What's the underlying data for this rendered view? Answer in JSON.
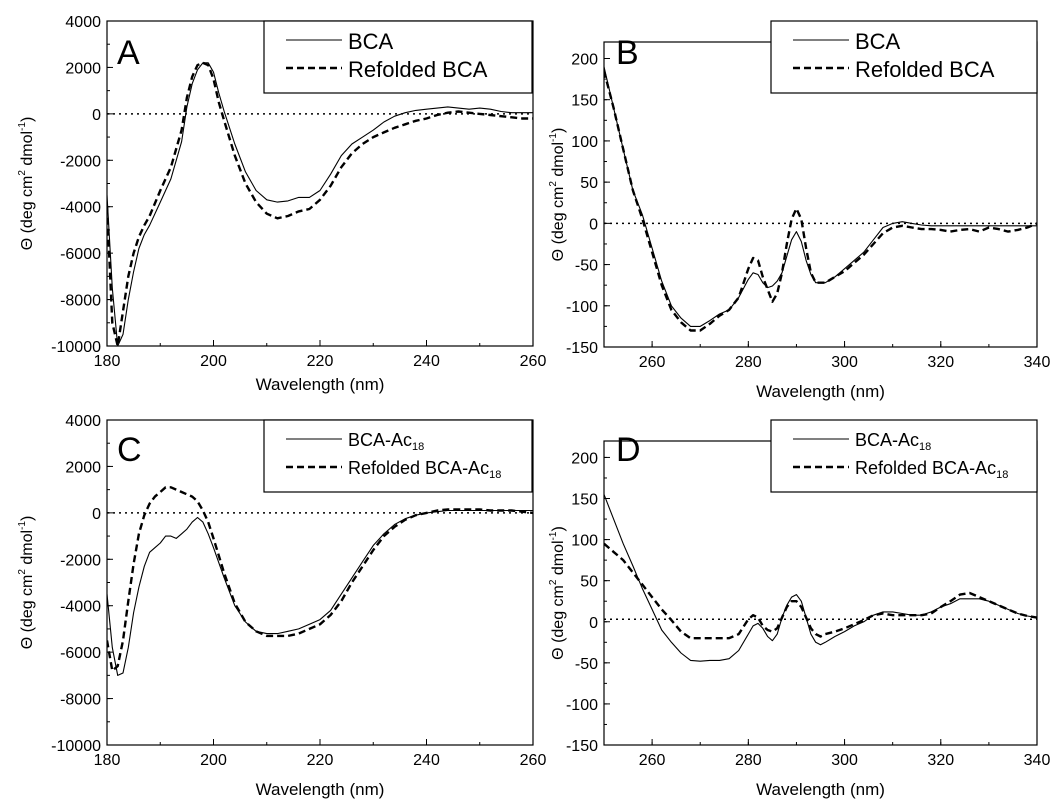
{
  "figure": {
    "panels": [
      {
        "letter": "A",
        "xlabel": "Wavelength (nm)",
        "ylabel_main": "Θ (deg cm",
        "ylabel_sup1": "2",
        "ylabel_mid": " dmol",
        "ylabel_sup2": "-1",
        "ylabel_end": ")",
        "legend": [
          {
            "text": "BCA",
            "sub": ""
          },
          {
            "text": "Refolded BCA",
            "sub": ""
          }
        ]
      },
      {
        "letter": "B",
        "xlabel": "Wavelength (nm)",
        "ylabel_main": "Θ (deg cm",
        "ylabel_sup1": "2",
        "ylabel_mid": " dmol",
        "ylabel_sup2": "-1",
        "ylabel_end": ")",
        "legend": [
          {
            "text": "BCA",
            "sub": ""
          },
          {
            "text": "Refolded BCA",
            "sub": ""
          }
        ]
      },
      {
        "letter": "C",
        "xlabel": "Wavelength (nm)",
        "ylabel_main": "Θ (deg cm",
        "ylabel_sup1": "2",
        "ylabel_mid": " dmol",
        "ylabel_sup2": "-1",
        "ylabel_end": ")",
        "legend": [
          {
            "text": "BCA-Ac",
            "sub": "18"
          },
          {
            "text": "Refolded BCA-Ac",
            "sub": "18"
          }
        ]
      },
      {
        "letter": "D",
        "xlabel": "Wavelength (nm)",
        "ylabel_main": "Θ (deg cm",
        "ylabel_sup1": "2",
        "ylabel_mid": " dmol",
        "ylabel_sup2": "-1",
        "ylabel_end": ")",
        "legend": [
          {
            "text": "BCA-Ac",
            "sub": "18"
          },
          {
            "text": "Refolded BCA-Ac",
            "sub": "18"
          }
        ]
      }
    ]
  },
  "chart_data": [
    {
      "type": "line",
      "panel": "A",
      "xlabel": "Wavelength (nm)",
      "ylabel": "Θ (deg cm2 dmol-1)",
      "xlim": [
        180,
        260
      ],
      "ylim": [
        -10000,
        4000
      ],
      "xticks": [
        180,
        200,
        220,
        240,
        260
      ],
      "yticks": [
        -10000,
        -8000,
        -6000,
        -4000,
        -2000,
        0,
        2000,
        4000
      ],
      "reference_line_y": 0,
      "series": [
        {
          "name": "BCA",
          "style": "solid",
          "x": [
            180,
            181,
            182,
            183,
            184,
            185,
            186,
            187,
            188,
            190,
            192,
            194,
            195,
            196,
            197,
            198,
            199,
            200,
            201,
            202,
            204,
            206,
            208,
            210,
            212,
            214,
            216,
            218,
            220,
            222,
            224,
            226,
            228,
            230,
            232,
            234,
            236,
            238,
            240,
            242,
            244,
            246,
            248,
            250,
            252,
            254,
            256,
            258,
            260
          ],
          "y": [
            -3500,
            -7500,
            -10000,
            -9500,
            -8000,
            -6800,
            -5800,
            -5200,
            -4800,
            -3800,
            -2800,
            -1200,
            300,
            1300,
            1900,
            2200,
            2200,
            1800,
            900,
            100,
            -1300,
            -2500,
            -3300,
            -3700,
            -3800,
            -3750,
            -3600,
            -3600,
            -3300,
            -2600,
            -1800,
            -1300,
            -1000,
            -700,
            -350,
            -100,
            50,
            150,
            200,
            250,
            300,
            250,
            200,
            250,
            200,
            100,
            50,
            50,
            50
          ]
        },
        {
          "name": "Refolded BCA",
          "style": "dashed",
          "x": [
            180,
            181,
            182,
            183,
            184,
            185,
            186,
            187,
            188,
            190,
            192,
            194,
            195,
            196,
            197,
            198,
            199,
            200,
            201,
            202,
            204,
            206,
            208,
            210,
            212,
            214,
            216,
            218,
            220,
            222,
            224,
            226,
            228,
            230,
            232,
            234,
            236,
            238,
            240,
            242,
            244,
            246,
            248,
            250,
            252,
            254,
            256,
            258,
            260
          ],
          "y": [
            -4000,
            -9000,
            -10000,
            -8500,
            -7000,
            -6000,
            -5300,
            -4800,
            -4400,
            -3300,
            -2300,
            -700,
            700,
            1600,
            2100,
            2200,
            2100,
            1500,
            500,
            -300,
            -1800,
            -3000,
            -3800,
            -4300,
            -4500,
            -4400,
            -4200,
            -4100,
            -3700,
            -3100,
            -2300,
            -1700,
            -1300,
            -1000,
            -800,
            -600,
            -450,
            -300,
            -200,
            -50,
            50,
            100,
            50,
            0,
            -50,
            -100,
            -150,
            -200,
            -200
          ]
        }
      ]
    },
    {
      "type": "line",
      "panel": "B",
      "xlabel": "Wavelength (nm)",
      "ylabel": "Θ (deg cm2 dmol-1)",
      "xlim": [
        250,
        340
      ],
      "ylim": [
        -150,
        220
      ],
      "xticks": [
        260,
        280,
        300,
        320,
        340
      ],
      "yticks": [
        -150,
        -100,
        -50,
        0,
        50,
        100,
        150,
        200
      ],
      "reference_line_y": 0,
      "series": [
        {
          "name": "BCA",
          "style": "solid",
          "x": [
            250,
            252,
            254,
            256,
            258,
            260,
            262,
            264,
            266,
            268,
            270,
            272,
            274,
            276,
            278,
            280,
            281,
            282,
            283,
            284,
            285,
            286,
            287,
            288,
            289,
            290,
            291,
            292,
            293,
            294,
            296,
            298,
            300,
            302,
            304,
            306,
            308,
            310,
            312,
            314,
            316,
            318,
            320,
            325,
            330,
            335,
            340
          ],
          "y": [
            190,
            140,
            90,
            40,
            10,
            -30,
            -70,
            -100,
            -115,
            -125,
            -125,
            -118,
            -110,
            -105,
            -90,
            -68,
            -60,
            -62,
            -72,
            -78,
            -76,
            -70,
            -60,
            -40,
            -20,
            -10,
            -22,
            -45,
            -62,
            -72,
            -72,
            -65,
            -55,
            -45,
            -35,
            -20,
            -5,
            0,
            2,
            0,
            -2,
            -3,
            -3,
            -3,
            -3,
            -3,
            -3
          ]
        },
        {
          "name": "Refolded BCA",
          "style": "dashed",
          "x": [
            250,
            252,
            254,
            256,
            258,
            260,
            262,
            264,
            266,
            268,
            270,
            272,
            274,
            276,
            278,
            280,
            281,
            282,
            283,
            284,
            285,
            286,
            287,
            288,
            289,
            290,
            291,
            292,
            293,
            294,
            296,
            298,
            300,
            302,
            304,
            306,
            308,
            310,
            312,
            314,
            316,
            318,
            320,
            322,
            324,
            326,
            328,
            330,
            332,
            334,
            336,
            338,
            340
          ],
          "y": [
            185,
            140,
            90,
            40,
            5,
            -35,
            -75,
            -105,
            -120,
            -130,
            -130,
            -122,
            -112,
            -105,
            -90,
            -55,
            -42,
            -45,
            -65,
            -80,
            -95,
            -85,
            -60,
            -25,
            5,
            18,
            5,
            -30,
            -60,
            -72,
            -72,
            -65,
            -58,
            -48,
            -38,
            -25,
            -12,
            -5,
            -3,
            -5,
            -7,
            -7,
            -8,
            -10,
            -8,
            -7,
            -10,
            -5,
            -7,
            -10,
            -8,
            -5,
            0
          ]
        }
      ]
    },
    {
      "type": "line",
      "panel": "C",
      "xlabel": "Wavelength (nm)",
      "ylabel": "Θ (deg cm2 dmol-1)",
      "xlim": [
        180,
        260
      ],
      "ylim": [
        -10000,
        4000
      ],
      "xticks": [
        180,
        200,
        220,
        240,
        260
      ],
      "yticks": [
        -10000,
        -8000,
        -6000,
        -4000,
        -2000,
        0,
        2000,
        4000
      ],
      "reference_line_y": 0,
      "series": [
        {
          "name": "BCA-Ac18",
          "style": "solid",
          "x": [
            180,
            181,
            182,
            183,
            184,
            185,
            186,
            187,
            188,
            189,
            190,
            191,
            192,
            193,
            194,
            195,
            196,
            197,
            198,
            199,
            200,
            202,
            204,
            206,
            208,
            210,
            212,
            214,
            216,
            218,
            220,
            222,
            224,
            226,
            228,
            230,
            232,
            234,
            236,
            238,
            240,
            242,
            244,
            246,
            248,
            250,
            252,
            254,
            256,
            258,
            260
          ],
          "y": [
            -3500,
            -5800,
            -7000,
            -6900,
            -5800,
            -4300,
            -3200,
            -2300,
            -1700,
            -1500,
            -1300,
            -1000,
            -1000,
            -1100,
            -900,
            -700,
            -400,
            -200,
            -400,
            -900,
            -1500,
            -2800,
            -4000,
            -4700,
            -5100,
            -5200,
            -5200,
            -5100,
            -5000,
            -4800,
            -4600,
            -4200,
            -3500,
            -2800,
            -2100,
            -1400,
            -900,
            -500,
            -250,
            -100,
            0,
            50,
            100,
            100,
            100,
            100,
            100,
            100,
            100,
            100,
            100
          ]
        },
        {
          "name": "Refolded BCA-Ac18",
          "style": "dashed",
          "x": [
            180,
            181,
            182,
            183,
            184,
            185,
            186,
            187,
            188,
            189,
            190,
            191,
            192,
            193,
            194,
            195,
            196,
            197,
            198,
            199,
            200,
            202,
            204,
            206,
            208,
            210,
            212,
            214,
            216,
            218,
            220,
            222,
            224,
            226,
            228,
            230,
            232,
            234,
            236,
            238,
            240,
            242,
            244,
            246,
            248,
            250,
            252,
            254,
            256,
            258,
            260
          ],
          "y": [
            -5500,
            -6800,
            -6600,
            -5500,
            -3800,
            -2200,
            -900,
            -100,
            400,
            700,
            900,
            1100,
            1100,
            1000,
            900,
            800,
            700,
            500,
            100,
            -400,
            -1100,
            -2600,
            -3900,
            -4700,
            -5100,
            -5300,
            -5300,
            -5300,
            -5200,
            -5000,
            -4800,
            -4400,
            -3800,
            -3000,
            -2300,
            -1600,
            -1000,
            -600,
            -300,
            -100,
            0,
            100,
            150,
            150,
            150,
            150,
            100,
            100,
            100,
            50,
            0
          ]
        }
      ]
    },
    {
      "type": "line",
      "panel": "D",
      "xlabel": "Wavelength (nm)",
      "ylabel": "Θ (deg cm2 dmol-1)",
      "xlim": [
        250,
        340
      ],
      "ylim": [
        -150,
        220
      ],
      "xticks": [
        260,
        280,
        300,
        320,
        340
      ],
      "yticks": [
        -150,
        -100,
        -50,
        0,
        50,
        100,
        150,
        200
      ],
      "reference_line_y": 3,
      "series": [
        {
          "name": "BCA-Ac18",
          "style": "solid",
          "x": [
            250,
            252,
            254,
            256,
            258,
            260,
            262,
            264,
            266,
            268,
            270,
            272,
            274,
            276,
            278,
            280,
            281,
            282,
            283,
            284,
            285,
            286,
            287,
            288,
            289,
            290,
            291,
            292,
            293,
            294,
            295,
            296,
            298,
            300,
            302,
            304,
            306,
            308,
            310,
            312,
            314,
            316,
            318,
            320,
            322,
            324,
            326,
            328,
            330,
            332,
            334,
            336,
            338,
            340
          ],
          "y": [
            155,
            125,
            95,
            68,
            40,
            15,
            -10,
            -25,
            -38,
            -47,
            -48,
            -47,
            -47,
            -45,
            -35,
            -15,
            -5,
            -2,
            -8,
            -18,
            -23,
            -15,
            5,
            20,
            30,
            33,
            25,
            5,
            -15,
            -25,
            -28,
            -25,
            -18,
            -12,
            -5,
            0,
            8,
            12,
            12,
            10,
            8,
            8,
            12,
            18,
            22,
            28,
            28,
            28,
            25,
            20,
            15,
            10,
            7,
            5
          ]
        },
        {
          "name": "Refolded BCA-Ac18",
          "style": "dashed",
          "x": [
            250,
            252,
            254,
            256,
            258,
            260,
            262,
            264,
            266,
            268,
            270,
            272,
            274,
            276,
            278,
            280,
            281,
            282,
            283,
            284,
            285,
            286,
            287,
            288,
            289,
            290,
            291,
            292,
            293,
            294,
            295,
            296,
            298,
            300,
            302,
            304,
            306,
            308,
            310,
            312,
            314,
            316,
            318,
            320,
            322,
            324,
            326,
            328,
            330,
            332,
            334,
            336,
            338,
            340
          ],
          "y": [
            95,
            85,
            75,
            60,
            45,
            30,
            15,
            2,
            -12,
            -20,
            -20,
            -20,
            -20,
            -20,
            -15,
            3,
            8,
            5,
            -5,
            -10,
            -12,
            -8,
            5,
            18,
            25,
            25,
            18,
            5,
            -8,
            -15,
            -18,
            -15,
            -12,
            -8,
            -3,
            2,
            8,
            10,
            8,
            8,
            8,
            8,
            10,
            18,
            25,
            33,
            35,
            30,
            25,
            20,
            15,
            10,
            7,
            5
          ]
        }
      ]
    }
  ]
}
